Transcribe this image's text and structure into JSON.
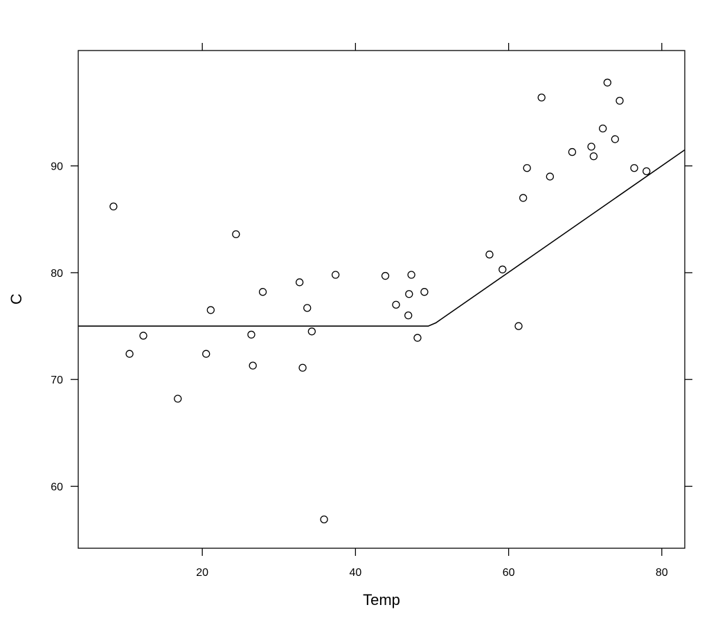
{
  "chart_data": {
    "type": "scatter",
    "xlabel": "Temp",
    "ylabel": "C",
    "xlim": [
      3.8,
      83
    ],
    "ylim": [
      54.2,
      100.8
    ],
    "x_ticks": [
      20,
      40,
      60,
      80
    ],
    "y_ticks": [
      60,
      70,
      80,
      90
    ],
    "grid": false,
    "points": [
      {
        "x": 8.4,
        "y": 86.2
      },
      {
        "x": 10.5,
        "y": 72.4
      },
      {
        "x": 12.3,
        "y": 74.1
      },
      {
        "x": 16.8,
        "y": 68.2
      },
      {
        "x": 20.5,
        "y": 72.4
      },
      {
        "x": 21.1,
        "y": 76.5
      },
      {
        "x": 24.4,
        "y": 83.6
      },
      {
        "x": 26.4,
        "y": 74.2
      },
      {
        "x": 26.6,
        "y": 71.3
      },
      {
        "x": 27.9,
        "y": 78.2
      },
      {
        "x": 32.7,
        "y": 79.1
      },
      {
        "x": 33.1,
        "y": 71.1
      },
      {
        "x": 33.7,
        "y": 76.7
      },
      {
        "x": 34.3,
        "y": 74.5
      },
      {
        "x": 35.9,
        "y": 56.9
      },
      {
        "x": 37.4,
        "y": 79.8
      },
      {
        "x": 43.9,
        "y": 79.7
      },
      {
        "x": 45.3,
        "y": 77.0
      },
      {
        "x": 46.9,
        "y": 76.0
      },
      {
        "x": 47.0,
        "y": 78.0
      },
      {
        "x": 47.3,
        "y": 79.8
      },
      {
        "x": 48.1,
        "y": 73.9
      },
      {
        "x": 49.0,
        "y": 78.2
      },
      {
        "x": 57.5,
        "y": 81.7
      },
      {
        "x": 59.2,
        "y": 80.3
      },
      {
        "x": 61.3,
        "y": 75.0
      },
      {
        "x": 61.9,
        "y": 87.0
      },
      {
        "x": 62.4,
        "y": 89.8
      },
      {
        "x": 64.3,
        "y": 96.4
      },
      {
        "x": 65.4,
        "y": 89.0
      },
      {
        "x": 68.3,
        "y": 91.3
      },
      {
        "x": 70.8,
        "y": 91.8
      },
      {
        "x": 71.1,
        "y": 90.9
      },
      {
        "x": 72.3,
        "y": 93.5
      },
      {
        "x": 72.9,
        "y": 97.8
      },
      {
        "x": 73.9,
        "y": 92.5
      },
      {
        "x": 74.5,
        "y": 96.1
      },
      {
        "x": 76.4,
        "y": 89.8
      },
      {
        "x": 78.0,
        "y": 89.5
      }
    ],
    "fit_line": [
      {
        "x": 3.8,
        "y": 75.0
      },
      {
        "x": 49.5,
        "y": 75.0
      },
      {
        "x": 50.5,
        "y": 75.3
      },
      {
        "x": 83.0,
        "y": 91.5
      }
    ]
  }
}
